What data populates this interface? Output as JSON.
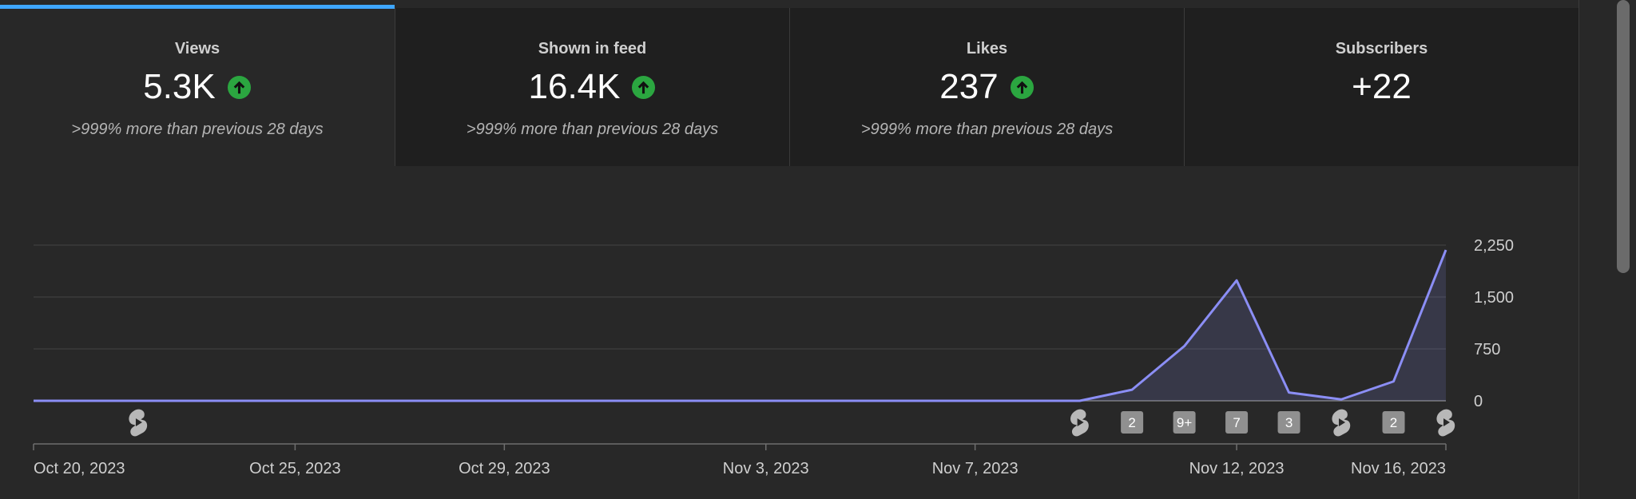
{
  "metrics": [
    {
      "title": "Views",
      "value": "5.3K",
      "trend": "up",
      "comparison": ">999% more than previous 28 days",
      "active": true
    },
    {
      "title": "Shown in feed",
      "value": "16.4K",
      "trend": "up",
      "comparison": ">999% more than previous 28 days",
      "active": false
    },
    {
      "title": "Likes",
      "value": "237",
      "trend": "up",
      "comparison": ">999% more than previous 28 days",
      "active": false
    },
    {
      "title": "Subscribers",
      "value": "+22",
      "trend": "none",
      "comparison": "",
      "active": false
    }
  ],
  "colors": {
    "background": "#282828",
    "card_background": "#1f1f1f",
    "active_tab": "#3ea6ff",
    "line": "#8b8ef5",
    "trend_up": "#2ba640",
    "badge": "#909090"
  },
  "chart_data": {
    "type": "area",
    "x": [
      "2023-10-20",
      "2023-10-21",
      "2023-10-22",
      "2023-10-23",
      "2023-10-24",
      "2023-10-25",
      "2023-10-26",
      "2023-10-27",
      "2023-10-28",
      "2023-10-29",
      "2023-10-30",
      "2023-10-31",
      "2023-11-01",
      "2023-11-02",
      "2023-11-03",
      "2023-11-04",
      "2023-11-05",
      "2023-11-06",
      "2023-11-07",
      "2023-11-08",
      "2023-11-09",
      "2023-11-10",
      "2023-11-11",
      "2023-11-12",
      "2023-11-13",
      "2023-11-14",
      "2023-11-15",
      "2023-11-16"
    ],
    "values": [
      0,
      0,
      0,
      0,
      0,
      0,
      0,
      0,
      0,
      0,
      0,
      0,
      0,
      0,
      0,
      0,
      0,
      0,
      0,
      0,
      0,
      160,
      790,
      1740,
      120,
      20,
      280,
      2180
    ],
    "ylim": [
      0,
      2250
    ],
    "yticks": [
      {
        "value": 0,
        "label": "0"
      },
      {
        "value": 750,
        "label": "750"
      },
      {
        "value": 1500,
        "label": "1,500"
      },
      {
        "value": 2250,
        "label": "2,250"
      }
    ],
    "xticks": [
      {
        "date": "2023-10-20",
        "label": "Oct 20, 2023"
      },
      {
        "date": "2023-10-25",
        "label": "Oct 25, 2023"
      },
      {
        "date": "2023-10-29",
        "label": "Oct 29, 2023"
      },
      {
        "date": "2023-11-03",
        "label": "Nov 3, 2023"
      },
      {
        "date": "2023-11-07",
        "label": "Nov 7, 2023"
      },
      {
        "date": "2023-11-12",
        "label": "Nov 12, 2023"
      },
      {
        "date": "2023-11-16",
        "label": "Nov 16, 2023"
      }
    ],
    "grid": true,
    "markers": [
      {
        "date": "2023-10-22",
        "kind": "shorts"
      },
      {
        "date": "2023-11-09",
        "kind": "shorts"
      },
      {
        "date": "2023-11-10",
        "kind": "count",
        "label": "2"
      },
      {
        "date": "2023-11-11",
        "kind": "count",
        "label": "9+"
      },
      {
        "date": "2023-11-12",
        "kind": "count",
        "label": "7"
      },
      {
        "date": "2023-11-13",
        "kind": "count",
        "label": "3"
      },
      {
        "date": "2023-11-14",
        "kind": "shorts"
      },
      {
        "date": "2023-11-15",
        "kind": "count",
        "label": "2"
      },
      {
        "date": "2023-11-16",
        "kind": "shorts"
      }
    ]
  }
}
